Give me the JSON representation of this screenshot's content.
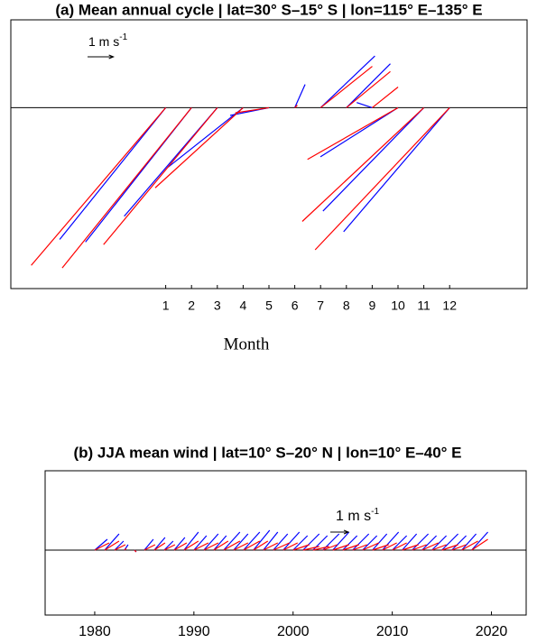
{
  "chart_data": [
    {
      "type": "stick",
      "title": "(a) Mean annual cycle | lat=30° S–15° S | lon=115° E–135° E",
      "x_label": "Month",
      "x": [
        1,
        2,
        3,
        4,
        5,
        6,
        7,
        8,
        9,
        10,
        11,
        12
      ],
      "xlim": [
        -5,
        15
      ],
      "xticks": [
        1,
        2,
        3,
        4,
        5,
        6,
        7,
        8,
        9,
        10,
        11,
        12
      ],
      "ylim": [
        -7,
        3.4
      ],
      "scale_label": "1 m s",
      "scale_label_sup": "-1",
      "scale_length": 1,
      "series": [
        {
          "color": "#0000ff",
          "u": [
            -4.1,
            -4.1,
            -3.6,
            -2.9,
            -1.5,
            0.4,
            2.1,
            1.7,
            -0.6,
            -3.0,
            -3.9,
            -4.1
          ],
          "v": [
            -5.1,
            -5.2,
            -4.2,
            -2.3,
            -0.3,
            0.9,
            2.0,
            1.7,
            0.2,
            -1.9,
            -4.0,
            -4.8
          ]
        },
        {
          "color": "#ff0000",
          "u": [
            -5.2,
            -5.0,
            -4.4,
            -3.4,
            -1.3,
            0.1,
            2.0,
            1.7,
            1.0,
            -3.5,
            -4.7,
            -5.2
          ],
          "v": [
            -6.1,
            -6.2,
            -5.3,
            -3.1,
            -0.2,
            0.1,
            1.6,
            1.4,
            0.8,
            -2.0,
            -4.4,
            -5.5
          ]
        }
      ]
    },
    {
      "type": "stick",
      "title": "(b) JJA mean wind | lat=10° S–20° N | lon=10° E–40° E",
      "x": [
        1980,
        1981,
        1982,
        1983,
        1984,
        1985,
        1986,
        1987,
        1988,
        1989,
        1990,
        1991,
        1992,
        1993,
        1994,
        1995,
        1996,
        1997,
        1998,
        1999,
        2000,
        2001,
        2002,
        2003,
        2004,
        2005,
        2006,
        2007,
        2008,
        2009,
        2010,
        2011,
        2012,
        2013,
        2014,
        2015,
        2016,
        2017,
        2018
      ],
      "xlim": [
        1975,
        2023.5
      ],
      "xticks": [
        1980,
        1990,
        2000,
        2010,
        2020
      ],
      "ylim": [
        -3.6,
        4.4
      ],
      "scale_label": "1 m s",
      "scale_label_sup": "-1",
      "scale_length": 1,
      "series": [
        {
          "color": "#0000ff",
          "u": [
            0.7,
            0.8,
            0.5,
            0.2,
            0.1,
            0.5,
            0.6,
            0.5,
            0.6,
            0.8,
            0.7,
            0.8,
            0.7,
            0.9,
            0.8,
            0.9,
            0.9,
            0.8,
            0.8,
            0.9,
            0.8,
            0.9,
            0.8,
            0.9,
            0.9,
            0.8,
            0.9,
            0.8,
            0.8,
            0.9,
            0.8,
            0.8,
            0.9,
            0.8,
            0.8,
            0.9,
            0.8,
            0.8,
            0.9
          ],
          "v": [
            0.6,
            0.9,
            0.5,
            0.3,
            -0.1,
            0.6,
            0.7,
            0.5,
            0.7,
            1.0,
            0.8,
            0.9,
            0.8,
            1.0,
            0.9,
            1.0,
            1.1,
            1.0,
            0.9,
            1.0,
            0.8,
            0.9,
            0.8,
            0.9,
            1.0,
            0.8,
            0.9,
            0.8,
            0.9,
            1.0,
            0.8,
            0.9,
            0.9,
            0.8,
            0.8,
            0.9,
            0.8,
            0.9,
            1.0
          ]
        },
        {
          "color": "#ff0000",
          "u": [
            0.8,
            0.8,
            0.6,
            0.1,
            0.1,
            0.6,
            0.6,
            0.6,
            0.7,
            0.8,
            0.8,
            0.8,
            0.8,
            0.9,
            0.8,
            0.9,
            0.8,
            0.8,
            0.9,
            0.8,
            0.9,
            0.9,
            0.9,
            0.8,
            0.9,
            0.9,
            0.8,
            0.9,
            0.9,
            0.8,
            0.8,
            0.9,
            0.8,
            0.9,
            0.8,
            0.9,
            0.8,
            0.9,
            0.9
          ],
          "v": [
            0.4,
            0.5,
            0.3,
            0.1,
            -0.1,
            0.3,
            0.4,
            0.3,
            0.4,
            0.5,
            0.4,
            0.4,
            0.5,
            0.5,
            0.4,
            0.5,
            0.5,
            0.4,
            0.4,
            0.4,
            0.3,
            0.2,
            0.2,
            0.3,
            0.3,
            0.3,
            0.3,
            0.4,
            0.3,
            0.4,
            0.4,
            0.3,
            0.3,
            0.4,
            0.3,
            0.3,
            0.3,
            0.5,
            0.6
          ]
        }
      ]
    }
  ]
}
